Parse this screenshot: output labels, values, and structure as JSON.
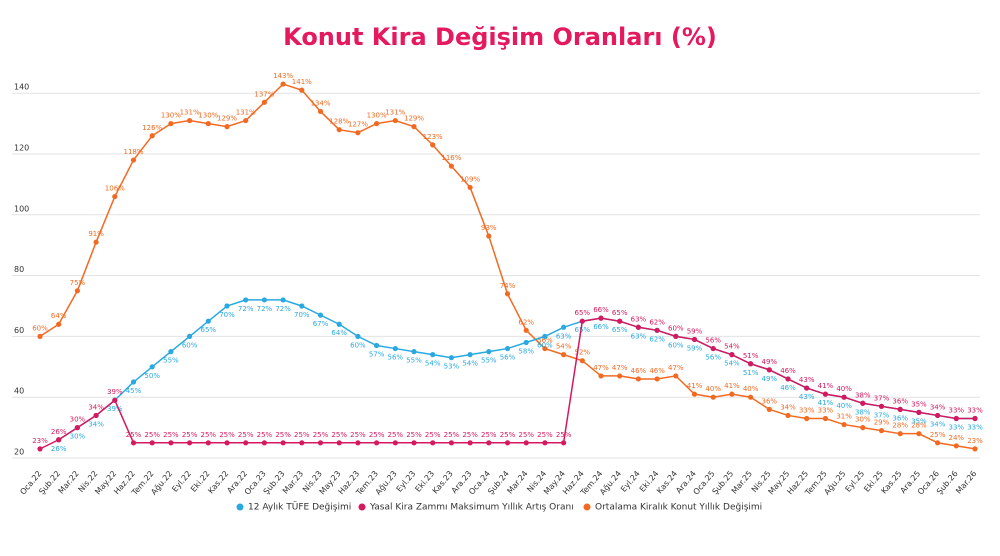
{
  "chart_data": {
    "type": "line",
    "title": "Konut Kira Değişim Oranları (%)",
    "categories": [
      "Oca.22",
      "Şub.22",
      "Mar.22",
      "Nis.22",
      "May.22",
      "Haz.22",
      "Tem.22",
      "Ağu.22",
      "Eyl.22",
      "Eki.22",
      "Kas.22",
      "Ara.22",
      "Oca.23",
      "Şub.23",
      "Mar.23",
      "Nis.23",
      "May.23",
      "Haz.23",
      "Tem.23",
      "Ağu.23",
      "Eyl.23",
      "Eki.23",
      "Kas.23",
      "Ara.23",
      "Oca.24",
      "Şub.24",
      "Mar.24",
      "Nis.24",
      "May.24",
      "Haz.24",
      "Tem.24",
      "Ağu.24",
      "Eyl.24",
      "Eki.24",
      "Kas.24",
      "Ara.24",
      "Oca.25",
      "Şub.25",
      "Mar.25",
      "Nis.25",
      "May.25",
      "Haz.25",
      "Tem.25",
      "Ağu.25",
      "Eyl.25",
      "Eki.25",
      "Kas.25",
      "Ara.25",
      "Oca.26",
      "Şub.26",
      "Mar.26"
    ],
    "series": [
      {
        "name": "12 Aylık TÜFE Değişimi",
        "color": "#29a9e0",
        "values": [
          null,
          26,
          30,
          34,
          39,
          45,
          50,
          55,
          60,
          65,
          70,
          72,
          72,
          72,
          70,
          67,
          64,
          60,
          57,
          56,
          55,
          54,
          53,
          54,
          55,
          56,
          58,
          60,
          63,
          65,
          66,
          65,
          63,
          62,
          60,
          59,
          56,
          54,
          51,
          49,
          46,
          43,
          41,
          40,
          38,
          37,
          36,
          35,
          34,
          33,
          33
        ],
        "value_labels": [
          null,
          "26%",
          "30%",
          "34%",
          "39%",
          "45%",
          "50%",
          "55%",
          "60%",
          "65%",
          "70%",
          "72%",
          "72%",
          "72%",
          "70%",
          "67%",
          "64%",
          "60%",
          "57%",
          "56%",
          "55%",
          "54%",
          "53%",
          "54%",
          "55%",
          "56%",
          "58%",
          "60%",
          "63%",
          "65%",
          "66%",
          "65%",
          "63%",
          "62%",
          "60%",
          "59%",
          "56%",
          "54%",
          "51%",
          "49%",
          "46%",
          "43%",
          "41%",
          "40%",
          "38%",
          "37%",
          "36%",
          "35%",
          "34%",
          "33%",
          "33%"
        ]
      },
      {
        "name": "Yasal Kira Zammı Maksimum Yıllık Artış Oranı",
        "color": "#d6185f",
        "values": [
          23,
          26,
          30,
          34,
          39,
          25,
          25,
          25,
          25,
          25,
          25,
          25,
          25,
          25,
          25,
          25,
          25,
          25,
          25,
          25,
          25,
          25,
          25,
          25,
          25,
          25,
          25,
          25,
          25,
          65,
          66,
          65,
          63,
          62,
          60,
          59,
          56,
          54,
          51,
          49,
          46,
          43,
          41,
          40,
          38,
          37,
          36,
          35,
          34,
          33,
          33
        ],
        "value_labels": [
          "23%",
          "26%",
          "30%",
          "34%",
          "39%",
          "25%",
          "25%",
          "25%",
          "25%",
          "25%",
          "25%",
          "25%",
          "25%",
          "25%",
          "25%",
          "25%",
          "25%",
          "25%",
          "25%",
          "25%",
          "25%",
          "25%",
          "25%",
          "25%",
          "25%",
          "25%",
          "25%",
          "25%",
          "25%",
          "65%",
          "66%",
          "65%",
          "63%",
          "62%",
          "60%",
          "59%",
          "56%",
          "54%",
          "51%",
          "49%",
          "46%",
          "43%",
          "41%",
          "40%",
          "38%",
          "37%",
          "36%",
          "35%",
          "34%",
          "33%",
          "33%"
        ]
      },
      {
        "name": "Ortalama Kiralık Konut Yıllık Değişimi",
        "color": "#f26a21",
        "values": [
          60,
          64,
          75,
          91,
          106,
          118,
          126,
          130,
          131,
          130,
          129,
          131,
          137,
          143,
          141,
          134,
          128,
          127,
          130,
          131,
          129,
          123,
          116,
          109,
          93,
          74,
          62,
          56,
          54,
          52,
          47,
          47,
          46,
          46,
          47,
          41,
          40,
          41,
          40,
          36,
          34,
          33,
          33,
          31,
          30,
          29,
          28,
          28,
          25,
          24,
          23
        ],
        "value_labels": [
          "60%",
          "64%",
          "75%",
          "91%",
          "106%",
          "118%",
          "126%",
          "130%",
          "131%",
          "130%",
          "129%",
          "131%",
          "137%",
          "143%",
          "141%",
          "134%",
          "128%",
          "127%",
          "130%",
          "131%",
          "129%",
          "123%",
          "116%",
          "109%",
          "93%",
          "74%",
          "62%",
          "56%",
          "54%",
          "52%",
          "47%",
          "47%",
          "46%",
          "46%",
          "47%",
          "41%",
          "40%",
          "41%",
          "40%",
          "36%",
          "34%",
          "33%",
          "33%",
          "31%",
          "30%",
          "29%",
          "28%",
          "28%",
          "25%",
          "24%",
          "23%"
        ]
      }
    ],
    "ylim": [
      20,
      150
    ],
    "yticks": [
      20,
      40,
      60,
      80,
      100,
      120,
      140
    ],
    "grid": true
  }
}
